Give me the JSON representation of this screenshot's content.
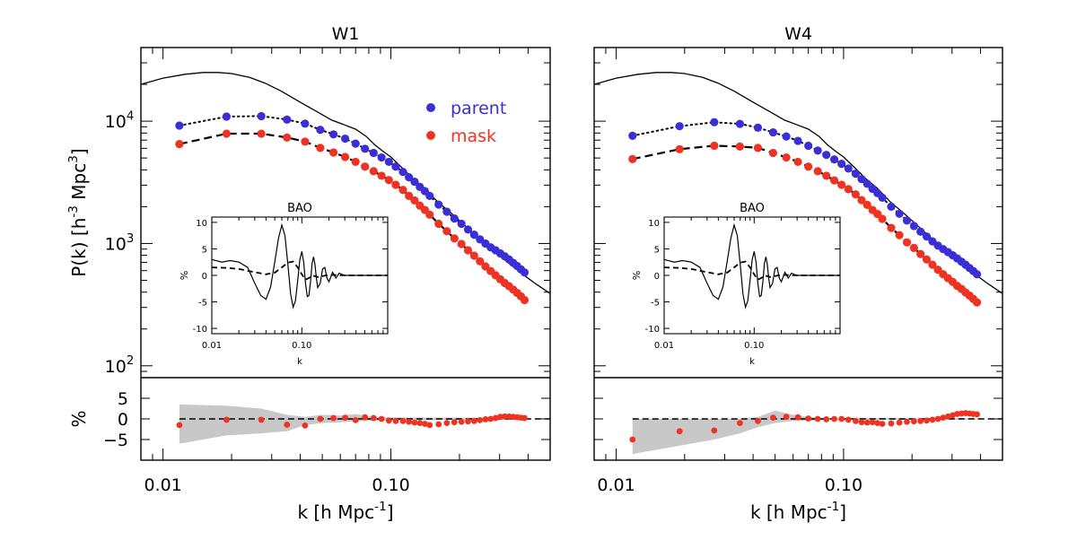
{
  "chart_data": [
    {
      "type": "scatter",
      "title": "W1",
      "xlabel": "k [h Mpc^-1]",
      "ylabel": "P(k) [h^-3 Mpc^3]",
      "xscale": "log",
      "yscale": "log",
      "xlim": [
        0.008,
        0.5
      ],
      "ylim": [
        80,
        40000
      ],
      "xticks": [
        "0.01",
        "0.10"
      ],
      "yticks": [
        "10^2",
        "10^3",
        "10^4"
      ],
      "legend": {
        "placement": "top-right",
        "entries": [
          "parent",
          "mask"
        ]
      },
      "colors": {
        "parent": "#3a2fd6",
        "mask": "#ee3322"
      },
      "x": [
        0.0118,
        0.019,
        0.027,
        0.035,
        0.042,
        0.049,
        0.056,
        0.063,
        0.07,
        0.077,
        0.084,
        0.091,
        0.098,
        0.105,
        0.113,
        0.12,
        0.127,
        0.134,
        0.141,
        0.148,
        0.162,
        0.176,
        0.19,
        0.204,
        0.218,
        0.232,
        0.246,
        0.26,
        0.274,
        0.288,
        0.302,
        0.316,
        0.33,
        0.344,
        0.358,
        0.372,
        0.386
      ],
      "series": [
        {
          "name": "parent",
          "values": [
            9200,
            10900,
            11000,
            10300,
            9550,
            8500,
            7800,
            7200,
            6550,
            5950,
            5500,
            5050,
            4650,
            4250,
            3850,
            3480,
            3200,
            2900,
            2680,
            2450,
            2080,
            1820,
            1600,
            1450,
            1300,
            1180,
            1080,
            1000,
            930,
            880,
            830,
            785,
            740,
            695,
            655,
            615,
            580
          ]
        },
        {
          "name": "mask",
          "values": [
            6500,
            7900,
            7900,
            7350,
            6800,
            6050,
            5550,
            5100,
            4650,
            4250,
            3900,
            3580,
            3300,
            3020,
            2740,
            2450,
            2250,
            2040,
            1880,
            1720,
            1450,
            1260,
            1100,
            990,
            880,
            795,
            715,
            650,
            595,
            550,
            510,
            475,
            448,
            420,
            395,
            370,
            345
          ]
        }
      ],
      "model": {
        "k": [
          0.008,
          0.01,
          0.0125,
          0.015,
          0.0175,
          0.02,
          0.024,
          0.028,
          0.033,
          0.04,
          0.048,
          0.055,
          0.062,
          0.07,
          0.078,
          0.085,
          0.092,
          0.1,
          0.11,
          0.125,
          0.14,
          0.16,
          0.185,
          0.21,
          0.24,
          0.28,
          0.32,
          0.37,
          0.43,
          0.5
        ],
        "P": [
          20000,
          22500,
          24200,
          25000,
          25000,
          24500,
          22800,
          20500,
          17600,
          14300,
          11800,
          10200,
          9400,
          8600,
          7500,
          6400,
          5700,
          5100,
          4300,
          3400,
          2850,
          2200,
          1750,
          1420,
          1130,
          880,
          720,
          580,
          470,
          390
        ]
      },
      "inset": {
        "title": "BAO",
        "xlabel": "k",
        "ylabel": "%",
        "xlim": [
          0.01,
          0.9
        ],
        "ylim": [
          -11,
          11
        ],
        "yticks": [
          "-10",
          "-5",
          "0",
          "5",
          "10"
        ],
        "xticks": [
          "0.01",
          "0.10"
        ],
        "solid": {
          "k": [
            0.01,
            0.013,
            0.016,
            0.02,
            0.025,
            0.03,
            0.035,
            0.04,
            0.045,
            0.05,
            0.055,
            0.06,
            0.065,
            0.07,
            0.075,
            0.08,
            0.085,
            0.09,
            0.095,
            0.1,
            0.105,
            0.11,
            0.115,
            0.12,
            0.125,
            0.13,
            0.135,
            0.14,
            0.145,
            0.15,
            0.16,
            0.17,
            0.18,
            0.19,
            0.2,
            0.22,
            0.24,
            0.26,
            0.3,
            0.4,
            0.6,
            0.9
          ],
          "v": [
            3,
            2.5,
            2.8,
            2.5,
            1.5,
            -1.5,
            -3.8,
            -4.5,
            -2.2,
            2.5,
            7,
            9.5,
            7.5,
            2,
            -3.5,
            -6,
            -4.8,
            -1,
            3,
            4.5,
            2.5,
            -1.5,
            -4,
            -3.8,
            -1.2,
            2.2,
            3.5,
            2,
            -0.5,
            -2.3,
            -1.5,
            1.2,
            1.5,
            -0.5,
            -1.2,
            0.6,
            -0.5,
            0.4,
            0,
            0,
            0,
            0
          ]
        },
        "dashed": {
          "k": [
            0.01,
            0.015,
            0.02,
            0.03,
            0.04,
            0.05,
            0.06,
            0.07,
            0.08,
            0.09,
            0.1,
            0.11,
            0.12,
            0.13,
            0.15,
            0.2,
            0.3,
            0.5,
            0.9
          ],
          "v": [
            1.5,
            1.4,
            1.2,
            0.6,
            0.2,
            0.5,
            1.5,
            2.4,
            2.6,
            1.5,
            0.2,
            -0.8,
            -0.5,
            0,
            -0.3,
            0.1,
            0,
            0,
            0
          ]
        }
      },
      "residual": {
        "ylabel": "%",
        "ylim": [
          -10,
          10
        ],
        "yticks": [
          "-5",
          "0",
          "5"
        ],
        "values": [
          -1.5,
          -0.2,
          -0.2,
          -1.4,
          -1.6,
          0,
          0.2,
          0.3,
          -0.3,
          0.4,
          0.2,
          0,
          -0.4,
          -0.5,
          -0.5,
          -0.7,
          -0.9,
          -1.0,
          -1.2,
          -1.5,
          -1.3,
          -1.0,
          -0.8,
          -0.7,
          -0.6,
          -0.5,
          -0.3,
          -0.1,
          0,
          0.2,
          0.5,
          0.6,
          0.6,
          0.5,
          0.4,
          0.3,
          0.2
        ],
        "band": {
          "k": [
            0.0118,
            0.019,
            0.027,
            0.035,
            0.042,
            0.05,
            0.06,
            0.07,
            0.08,
            0.1,
            0.15,
            0.2,
            0.3,
            0.4
          ],
          "upper": [
            3.5,
            3.2,
            2.5,
            1.0,
            0.5,
            1.0,
            0.8,
            1.2,
            0.6,
            0.4,
            0.3,
            0.3,
            0.3,
            0.2
          ],
          "lower": [
            -6.0,
            -4.0,
            -3.5,
            -3.0,
            -1.5,
            -1.0,
            -0.8,
            -0.6,
            -0.5,
            -0.4,
            -0.3,
            -0.3,
            -0.3,
            -0.2
          ]
        }
      }
    },
    {
      "type": "scatter",
      "title": "W4",
      "xlabel": "k [h Mpc^-1]",
      "ylabel": "",
      "xscale": "log",
      "yscale": "log",
      "xlim": [
        0.008,
        0.5
      ],
      "ylim": [
        80,
        40000
      ],
      "xticks": [
        "0.01",
        "0.10"
      ],
      "colors": {
        "parent": "#3a2fd6",
        "mask": "#ee3322"
      },
      "x": [
        0.0118,
        0.019,
        0.027,
        0.035,
        0.042,
        0.049,
        0.056,
        0.063,
        0.07,
        0.077,
        0.084,
        0.091,
        0.098,
        0.105,
        0.113,
        0.12,
        0.127,
        0.134,
        0.141,
        0.148,
        0.162,
        0.176,
        0.19,
        0.204,
        0.218,
        0.232,
        0.246,
        0.26,
        0.274,
        0.288,
        0.302,
        0.316,
        0.33,
        0.344,
        0.358,
        0.372,
        0.386
      ],
      "series": [
        {
          "name": "parent",
          "values": [
            7600,
            9100,
            9800,
            9500,
            8850,
            8100,
            7500,
            6900,
            6300,
            5750,
            5300,
            4870,
            4480,
            4100,
            3720,
            3360,
            3080,
            2800,
            2580,
            2370,
            2000,
            1750,
            1540,
            1390,
            1250,
            1140,
            1040,
            960,
            900,
            850,
            800,
            755,
            710,
            670,
            630,
            595,
            560
          ]
        },
        {
          "name": "mask",
          "values": [
            4900,
            5900,
            6300,
            6200,
            6050,
            5500,
            5050,
            4650,
            4250,
            3900,
            3580,
            3280,
            3020,
            2780,
            2520,
            2260,
            2070,
            1880,
            1740,
            1590,
            1340,
            1170,
            1020,
            920,
            820,
            740,
            670,
            610,
            560,
            520,
            485,
            450,
            425,
            398,
            375,
            352,
            330
          ]
        }
      ],
      "model": {
        "k": [
          0.008,
          0.01,
          0.0125,
          0.015,
          0.0175,
          0.02,
          0.024,
          0.028,
          0.033,
          0.04,
          0.048,
          0.055,
          0.062,
          0.07,
          0.078,
          0.085,
          0.092,
          0.1,
          0.11,
          0.125,
          0.14,
          0.16,
          0.185,
          0.21,
          0.24,
          0.28,
          0.32,
          0.37,
          0.43,
          0.5
        ],
        "P": [
          20000,
          22500,
          24200,
          25000,
          25000,
          24500,
          22800,
          20500,
          17600,
          14300,
          11800,
          10200,
          9400,
          8600,
          7500,
          6400,
          5700,
          5100,
          4300,
          3400,
          2850,
          2200,
          1750,
          1420,
          1130,
          880,
          720,
          580,
          470,
          390
        ]
      },
      "inset": {
        "title": "BAO",
        "xlabel": "k",
        "ylabel": "%",
        "xlim": [
          0.01,
          0.9
        ],
        "ylim": [
          -11,
          11
        ],
        "yticks": [
          "-10",
          "-5",
          "0",
          "5",
          "10"
        ],
        "xticks": [
          "0.01",
          "0.10"
        ],
        "solid": {
          "k": [
            0.01,
            0.013,
            0.016,
            0.02,
            0.025,
            0.03,
            0.035,
            0.04,
            0.045,
            0.05,
            0.055,
            0.06,
            0.065,
            0.07,
            0.075,
            0.08,
            0.085,
            0.09,
            0.095,
            0.1,
            0.105,
            0.11,
            0.115,
            0.12,
            0.125,
            0.13,
            0.135,
            0.14,
            0.145,
            0.15,
            0.16,
            0.17,
            0.18,
            0.19,
            0.2,
            0.22,
            0.24,
            0.26,
            0.3,
            0.4,
            0.6,
            0.9
          ],
          "v": [
            3,
            2.5,
            2.8,
            2.5,
            1.5,
            -1.5,
            -3.8,
            -4.5,
            -2.2,
            2.5,
            7,
            9.5,
            7.5,
            2,
            -3.5,
            -6,
            -4.8,
            -1,
            3,
            4.5,
            2.5,
            -1.5,
            -4,
            -3.8,
            -1.2,
            2.2,
            3.5,
            2,
            -0.5,
            -2.3,
            -1.5,
            1.2,
            1.5,
            -0.5,
            -1.2,
            0.6,
            -0.5,
            0.4,
            0,
            0,
            0,
            0
          ]
        },
        "dashed": {
          "k": [
            0.01,
            0.015,
            0.02,
            0.03,
            0.04,
            0.05,
            0.06,
            0.07,
            0.08,
            0.09,
            0.1,
            0.11,
            0.12,
            0.13,
            0.15,
            0.2,
            0.3,
            0.5,
            0.9
          ],
          "v": [
            1.5,
            1.4,
            1.2,
            0.6,
            0.2,
            0.5,
            1.5,
            2.4,
            2.6,
            1.5,
            0.2,
            -0.8,
            -0.5,
            0,
            -0.3,
            0.1,
            0,
            0,
            0
          ]
        }
      },
      "residual": {
        "ylabel": "",
        "ylim": [
          -10,
          10
        ],
        "yticks": [],
        "values": [
          -5.0,
          -3.0,
          -2.8,
          -1.0,
          -0.5,
          0.3,
          0.5,
          0.4,
          0.1,
          0,
          -0.1,
          0,
          0,
          -0.2,
          -0.5,
          -0.8,
          -0.9,
          -0.8,
          -1.0,
          -1.2,
          -1.1,
          -0.9,
          -0.7,
          -0.6,
          -0.5,
          -0.4,
          -0.2,
          0,
          0.3,
          0.6,
          0.9,
          1.2,
          1.3,
          1.4,
          1.3,
          1.2,
          1.1
        ],
        "band": {
          "k": [
            0.0118,
            0.019,
            0.027,
            0.035,
            0.042,
            0.05,
            0.06,
            0.07,
            0.08,
            0.1,
            0.15,
            0.2,
            0.3,
            0.4
          ],
          "upper": [
            0,
            0,
            0,
            0,
            0.5,
            2.0,
            1.0,
            0.5,
            0.3,
            0.2,
            0.2,
            0.2,
            0.2,
            0.1
          ],
          "lower": [
            -8.5,
            -6.5,
            -5.0,
            -3.5,
            -2.0,
            -1.0,
            -0.5,
            -0.5,
            -0.3,
            -0.2,
            -0.2,
            -0.2,
            -0.2,
            -0.1
          ]
        }
      }
    }
  ]
}
